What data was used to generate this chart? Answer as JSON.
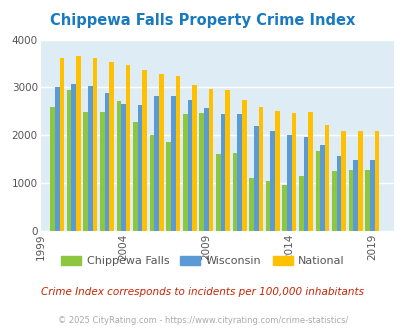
{
  "title": "Chippewa Falls Property Crime Index",
  "subtitle": "Crime Index corresponds to incidents per 100,000 inhabitants",
  "footer": "© 2025 CityRating.com - https://www.cityrating.com/crime-statistics/",
  "years": [
    2000,
    2001,
    2002,
    2003,
    2004,
    2005,
    2006,
    2007,
    2008,
    2009,
    2010,
    2011,
    2012,
    2013,
    2014,
    2015,
    2016,
    2017,
    2018,
    2019
  ],
  "chippewa_falls": [
    2600,
    2950,
    2480,
    2480,
    2720,
    2280,
    2000,
    1870,
    2450,
    2470,
    1610,
    1620,
    1100,
    1040,
    960,
    1150,
    1670,
    1250,
    1280,
    1280
  ],
  "wisconsin": [
    3000,
    3080,
    3040,
    2880,
    2650,
    2640,
    2820,
    2830,
    2740,
    2570,
    2450,
    2440,
    2200,
    2080,
    2000,
    1970,
    1800,
    1560,
    1490,
    1480
  ],
  "national": [
    3620,
    3660,
    3620,
    3530,
    3460,
    3370,
    3290,
    3230,
    3050,
    2960,
    2940,
    2730,
    2600,
    2500,
    2460,
    2490,
    2220,
    2100,
    2100,
    2100
  ],
  "colors": {
    "chippewa": "#8dc63f",
    "wisconsin": "#5b9bd5",
    "national": "#ffc000",
    "background": "#deedf5",
    "title": "#1a7abf",
    "subtitle": "#cc2200",
    "footer": "#aaaaaa"
  },
  "ylim": [
    0,
    4000
  ],
  "xtick_years": [
    1999,
    2004,
    2009,
    2014,
    2019
  ],
  "bar_width": 0.28
}
